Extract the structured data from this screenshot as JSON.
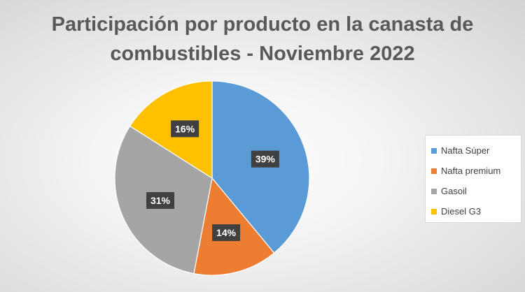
{
  "chart_data": {
    "type": "pie",
    "title_lines": [
      "Participación por producto en la canasta de",
      "combustibles - Noviembre 2022"
    ],
    "categories": [
      "Nafta Súper",
      "Nafta premium",
      "Gasoil",
      "Diesel G3"
    ],
    "values": [
      39,
      14,
      31,
      16
    ],
    "data_labels": [
      "39%",
      "14%",
      "31%",
      "16%"
    ],
    "colors": [
      "#5b9bd5",
      "#ed7d31",
      "#a5a5a5",
      "#ffc000"
    ],
    "start_angle": "12 o'clock",
    "direction": "clockwise",
    "legend_position": "right"
  }
}
